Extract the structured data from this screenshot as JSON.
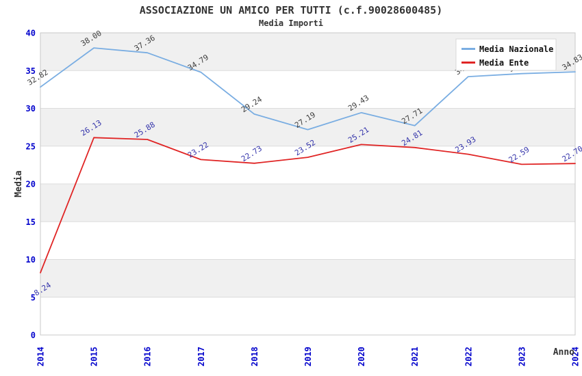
{
  "chart_data": {
    "type": "line",
    "title": "ASSOCIAZIONE UN AMICO PER TUTTI (c.f.90028600485)",
    "subtitle": "Media Importi",
    "xlabel": "Anno",
    "ylabel": "Media",
    "x": [
      "2014",
      "2015",
      "2016",
      "2017",
      "2018",
      "2019",
      "2020",
      "2021",
      "2022",
      "2023",
      "2024"
    ],
    "ylim": [
      0,
      40
    ],
    "yticks": [
      0,
      5,
      10,
      15,
      20,
      25,
      30,
      35,
      40
    ],
    "grid": "horizontal-bands-alternating",
    "legend_position": "top-right-inside",
    "series": [
      {
        "name": "Media Nazionale",
        "color": "#79ade2",
        "label_color": "#3d3d3d",
        "values": [
          32.82,
          38.0,
          37.36,
          34.79,
          29.24,
          27.19,
          29.43,
          27.71,
          34.2,
          34.6,
          34.83
        ],
        "occluded_label_indices": [
          8,
          9
        ],
        "note": "2022 and 2023 point labels are hidden behind the legend; their values are estimated from the line position"
      },
      {
        "name": "Media Ente",
        "color": "#e02424",
        "label_color": "#3333aa",
        "values": [
          8.24,
          26.13,
          25.88,
          23.22,
          22.73,
          23.52,
          25.21,
          24.81,
          23.93,
          22.59,
          22.7
        ],
        "label_offsets": {
          "0": {
            "dx": 5,
            "dy": 27
          }
        }
      }
    ],
    "style": {
      "tick_color": "#0000cc",
      "axis_title_color": "#333333",
      "band_color": "#f0f0f0",
      "grid_color": "#dcdcdc",
      "plot_border_color": "#c8c8c8",
      "legend_text_color": "#111111",
      "legend_border_color": "#d9d9d9",
      "background": "#ffffff"
    }
  }
}
